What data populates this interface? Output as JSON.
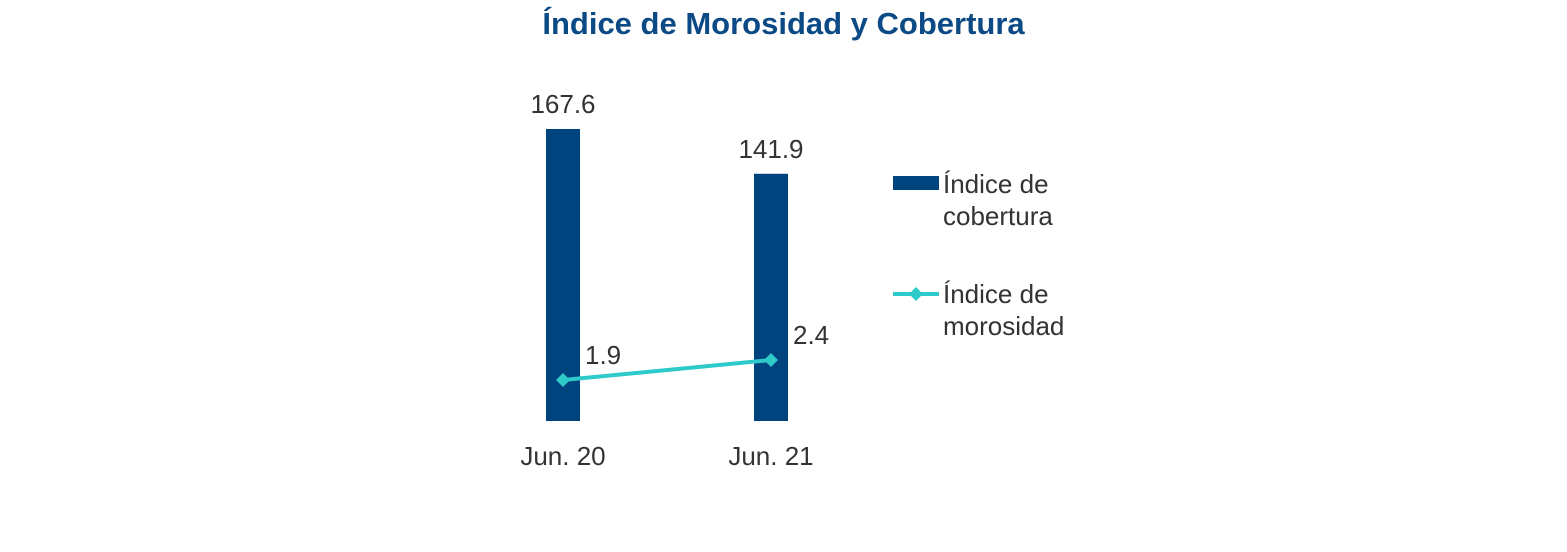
{
  "chart_data": {
    "type": "bar+line",
    "title": "Índice de Morosidad y Cobertura",
    "categories": [
      "Jun. 20",
      "Jun. 21"
    ],
    "series": [
      {
        "name": "Índice de cobertura",
        "kind": "bar",
        "axis": "primary",
        "values": [
          167.6,
          141.9
        ],
        "labels": [
          "167.6",
          "141.9"
        ],
        "color": "#00447f"
      },
      {
        "name": "Índice de morosidad",
        "kind": "line",
        "axis": "secondary",
        "values": [
          1.9,
          2.4
        ],
        "labels": [
          "1.9",
          "2.4"
        ],
        "color": "#2ec9c9"
      }
    ],
    "legend": {
      "position": "right",
      "lines": [
        [
          "Índice de",
          "cobertura"
        ],
        [
          "Índice de",
          "morosidad"
        ]
      ]
    },
    "grid": false
  }
}
